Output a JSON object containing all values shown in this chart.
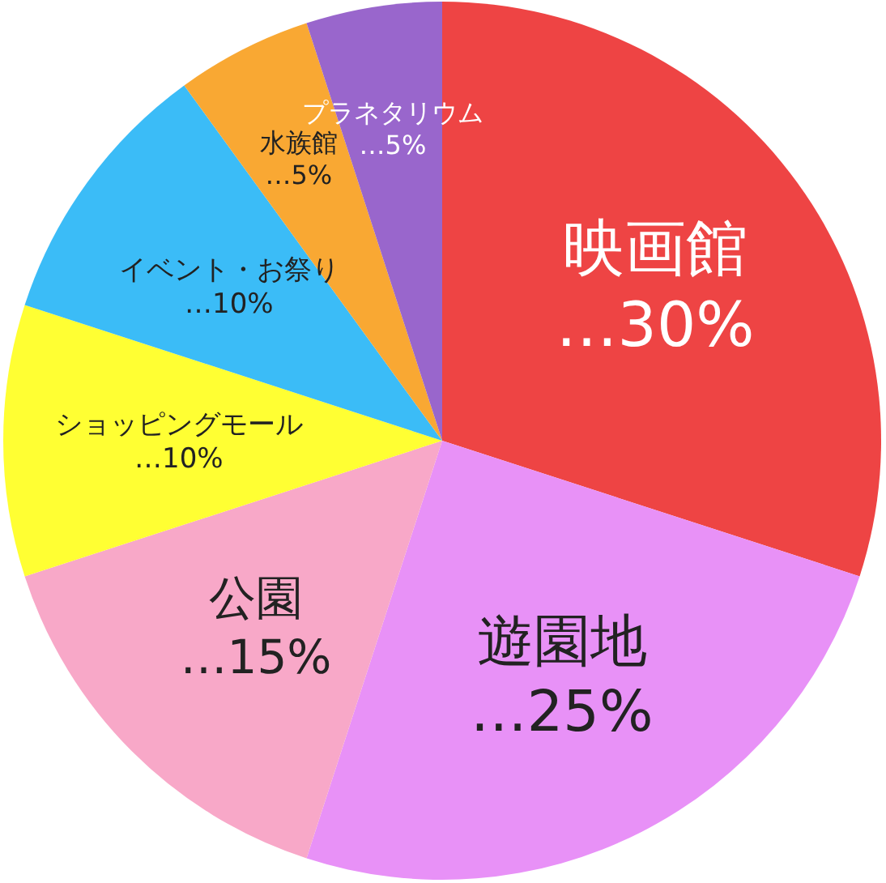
{
  "chart_data": {
    "type": "pie",
    "categories": [
      "映画館",
      "遊園地",
      "公園",
      "ショッピングモール",
      "イベント・お祭り",
      "水族館",
      "プラネタリウム"
    ],
    "values": [
      30,
      25,
      15,
      10,
      10,
      5,
      5
    ],
    "value_labels": [
      "…30%",
      "…25%",
      "…15%",
      "…10%",
      "…10%",
      "…5%",
      "…5%"
    ],
    "colors": [
      "#ee4444",
      "#e891f7",
      "#f8a8c8",
      "#ffff33",
      "#3bbcf7",
      "#f9a833",
      "#9966cc"
    ]
  }
}
